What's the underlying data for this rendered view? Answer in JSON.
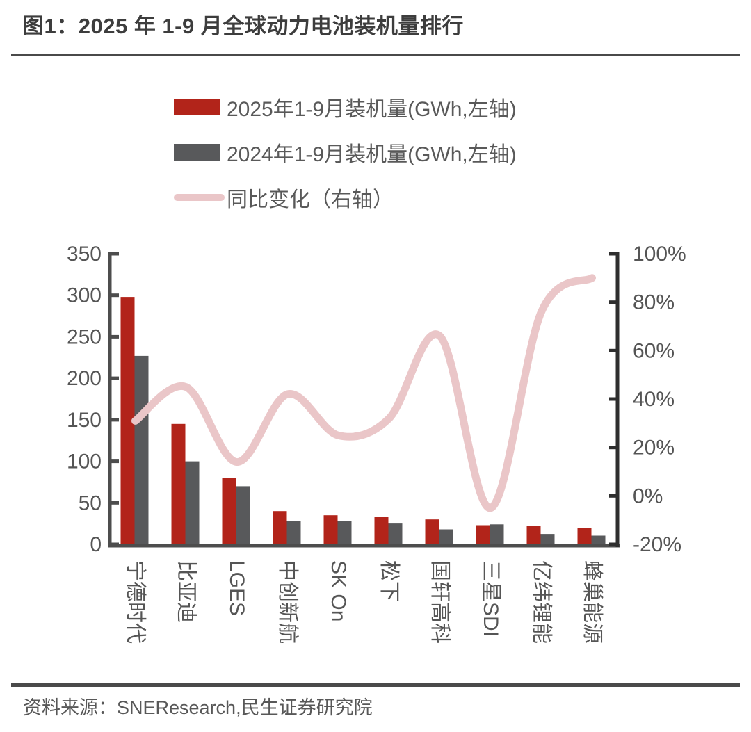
{
  "title": "图1：2025 年 1-9 月全球动力电池装机量排行",
  "source": "资料来源：SNEResearch,民生证券研究院",
  "legend": [
    {
      "label": "2025年1-9月装机量(GWh,左轴)",
      "swatch": "bar",
      "color": "#b2241a"
    },
    {
      "label": "2024年1-9月装机量(GWh,左轴)",
      "swatch": "bar",
      "color": "#58595b"
    },
    {
      "label": "同比变化（右轴）",
      "swatch": "line",
      "color": "#eac6c8"
    }
  ],
  "colors": {
    "bar_2025": "#b2241a",
    "bar_2024": "#58595b",
    "yoy_line": "#eac6c8",
    "axis": "#4d4d4d",
    "right_axis": "#2e2e2e",
    "tick_text": "#555555",
    "title_text": "#3d3d3d"
  },
  "chart_data": {
    "type": "bar",
    "subtype": "combo-bar-line-dual-axis",
    "categories": [
      "宁德时代",
      "比亚迪",
      "LGES",
      "中创新航",
      "SK On",
      "松下",
      "国轩高科",
      "三星SDI",
      "亿纬锂能",
      "蜂巢能源"
    ],
    "series": [
      {
        "name": "2025年1-9月装机量(GWh,左轴)",
        "type": "bar",
        "axis": "left",
        "color": "#b2241a",
        "values": [
          298,
          145,
          80,
          40,
          35,
          33,
          30,
          23,
          22,
          20
        ]
      },
      {
        "name": "2024年1-9月装机量(GWh,左轴)",
        "type": "bar",
        "axis": "left",
        "color": "#58595b",
        "values": [
          227,
          100,
          70,
          28,
          28,
          25,
          18,
          24,
          12.5,
          10.5
        ]
      },
      {
        "name": "同比变化（右轴）",
        "type": "line",
        "axis": "right",
        "color": "#eac6c8",
        "values": [
          31,
          45,
          14,
          42,
          25,
          32,
          66,
          -5,
          76,
          90
        ]
      }
    ],
    "left_axis": {
      "min": 0,
      "max": 350,
      "step": 50,
      "tick_labels": [
        "0",
        "50",
        "100",
        "150",
        "200",
        "250",
        "300",
        "350"
      ]
    },
    "right_axis": {
      "min": -20,
      "max": 100,
      "step": 20,
      "tick_labels": [
        "-20%",
        "0%",
        "20%",
        "40%",
        "60%",
        "80%",
        "100%"
      ]
    },
    "grid": false,
    "legend_position": "top"
  }
}
